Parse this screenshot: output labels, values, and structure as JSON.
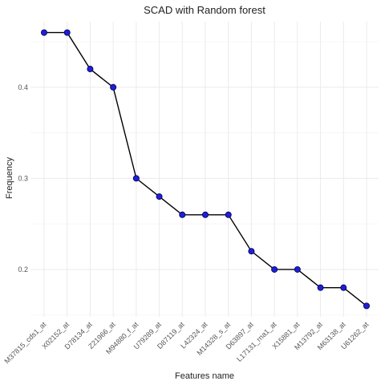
{
  "chart_data": {
    "type": "line",
    "title": "SCAD with Random forest",
    "xlabel": "Features name",
    "ylabel": "Frequency",
    "categories": [
      "M37815_cds1_at",
      "X02152_at",
      "D78134_at",
      "Z21966_at",
      "M94880_f_at",
      "U79289_at",
      "D87119_at",
      "L42324_at",
      "M14328_s_at",
      "D63897_at",
      "L17131_rna1_at",
      "X15881_at",
      "M13792_at",
      "M63138_at",
      "U61262_at"
    ],
    "series": [
      {
        "values": [
          0.46,
          0.46,
          0.42,
          0.4,
          0.3,
          0.28,
          0.26,
          0.26,
          0.26,
          0.22,
          0.2,
          0.2,
          0.18,
          0.18,
          0.16
        ]
      }
    ],
    "ylim": [
      0.148,
      0.472
    ],
    "yticks": [
      0.2,
      0.3,
      0.4
    ],
    "ytick_labels": [
      "0.2",
      "0.3",
      "0.4"
    ],
    "grid": true,
    "colors": {
      "line": "#000000",
      "point": "#1f1fd6"
    }
  }
}
